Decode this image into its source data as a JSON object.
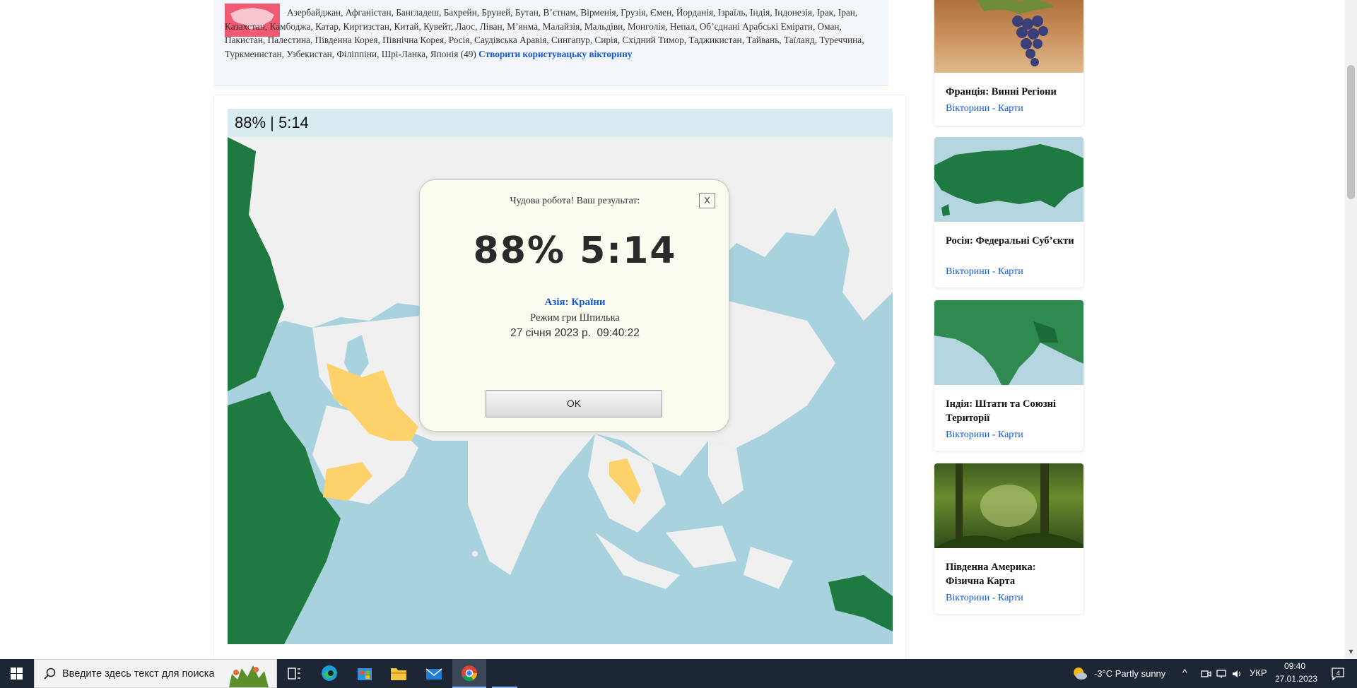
{
  "quiz_info": {
    "countries_text": "Азербайджан, Афганістан, Бангладеш, Бахрейн, Бруней, Бутан, В’єтнам, Вірменія, Грузія, Ємен, Йорданія, Ізраїль, Індія, Індонезія, Ірак, Іран, Казахстан, Камбоджа, Катар, Киргизстан, Китай, Кувейт, Лаос, Ліван, М’янма, Малайзія, Мальдіви, Монголія, Непал, Об’єднані Арабські Емірати, Оман, Пакистан, Палестина, Південна Корея, Північна Корея, Росія, Саудівська Аравія, Сингапур, Сирія, Східний Тимор, Таджикистан, Тайвань, Таїланд, Туреччина, Туркменистан, Узбекистан, Філіппіни, Шрі-Ланка, Японія (49)",
    "create_link": "Створити користувацьку вікторину"
  },
  "game": {
    "score_bar": "88% | 5:14"
  },
  "dialog": {
    "title": "Чудова робота! Ваш результат:",
    "close": "X",
    "score": "88% 5:14",
    "quiz_name": "Азія: Країни",
    "mode": "Режим гри Шпилька",
    "date": "27 січня 2023 р.  09:40:22",
    "ok": "OK"
  },
  "sidebar": {
    "cards": [
      {
        "title": "Франція: Винні Регіони",
        "links": "Вікторини - Карти"
      },
      {
        "title": "Росія: Федеральні Суб’єкти",
        "links": "Вікторини - Карти"
      },
      {
        "title": "Індія: Штати та Союзні Території",
        "links": "Вікторини - Карти"
      },
      {
        "title": "Південна Америка: Фізична Карта",
        "links": "Вікторини - Карти"
      }
    ]
  },
  "taskbar": {
    "search_placeholder": "Введите здесь текст для поиска",
    "weather": "-3°C  Partly sunny",
    "language": "УКР",
    "time": "09:40",
    "date": "27.01.2023",
    "notifications": "4"
  },
  "colors": {
    "sea": "#a8d2dd",
    "land_neutral": "#f0f0f0",
    "highlight_yellow": "#fed26a",
    "green_land": "#1e7a40",
    "link_blue": "#1558d6",
    "asia_flag_pink": "#f05a72"
  }
}
